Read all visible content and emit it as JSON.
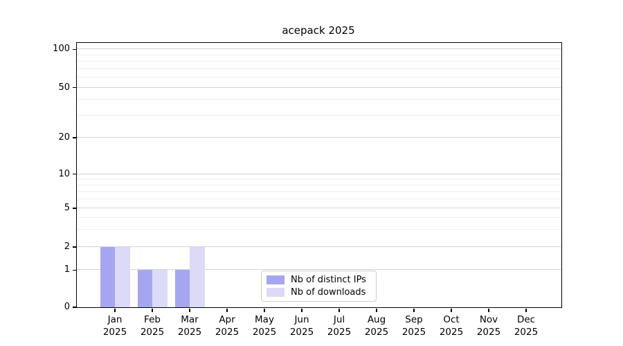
{
  "page": {
    "background": "#ffffff"
  },
  "chart_data": {
    "type": "bar",
    "title": "acepack 2025",
    "categories": [
      "Jan",
      "Feb",
      "Mar",
      "Apr",
      "May",
      "Jun",
      "Jul",
      "Aug",
      "Sep",
      "Oct",
      "Nov",
      "Dec"
    ],
    "category_year": "2025",
    "series": [
      {
        "name": "Nb of distinct IPs",
        "color": "#a6a6f0",
        "values": [
          2,
          1,
          1,
          0,
          0,
          0,
          0,
          0,
          0,
          0,
          0,
          0
        ]
      },
      {
        "name": "Nb of downloads",
        "color": "#dbdbf8",
        "values": [
          2,
          1,
          2,
          0,
          0,
          0,
          0,
          0,
          0,
          0,
          0,
          0
        ]
      }
    ],
    "yticks": [
      0,
      1,
      2,
      5,
      10,
      20,
      50,
      100
    ],
    "yminorticks": [
      3,
      4,
      6,
      7,
      8,
      9,
      30,
      40,
      60,
      70,
      80,
      90
    ],
    "yscale": "symlog",
    "ylim": [
      0,
      100
    ],
    "xlabel": "",
    "ylabel": "",
    "grid": "horizontal",
    "legend_position": "bottom-center"
  }
}
